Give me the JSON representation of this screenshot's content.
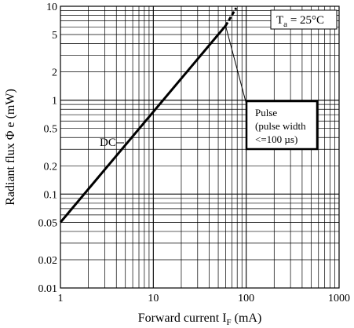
{
  "chart_data": {
    "type": "line",
    "x_scale": "log",
    "y_scale": "log",
    "xlim": [
      1,
      1000
    ],
    "ylim": [
      0.01,
      10
    ],
    "grid": true,
    "x_ticks": [
      1,
      10,
      100,
      1000
    ],
    "x_tick_labels": [
      "1",
      "10",
      "100",
      "1000"
    ],
    "y_ticks": [
      0.01,
      0.02,
      0.05,
      0.1,
      0.2,
      0.5,
      1,
      2,
      5,
      10
    ],
    "y_tick_labels": [
      "0.01",
      "0.02",
      "0.05",
      "0.1",
      "0.2",
      "0.5",
      "1",
      "2",
      "5",
      "10"
    ],
    "xlabel": {
      "main": "Forward current I",
      "sub": "F",
      "unit": " (mA)"
    },
    "ylabel": "Radiant flux Φ e  (mW)",
    "series": [
      {
        "style": "solid",
        "x": [
          1,
          60
        ],
        "y": [
          0.05,
          6.2
        ]
      },
      {
        "style": "dashed",
        "x": [
          60,
          78
        ],
        "y": [
          6.2,
          9.6
        ]
      }
    ],
    "annotations": {
      "dc_label": "DC",
      "temperature": {
        "main": "T",
        "sub": "a",
        "rest": " = 25°C"
      },
      "pulse_box": [
        "Pulse",
        "(pulse width",
        "<=100 µs)"
      ]
    }
  }
}
